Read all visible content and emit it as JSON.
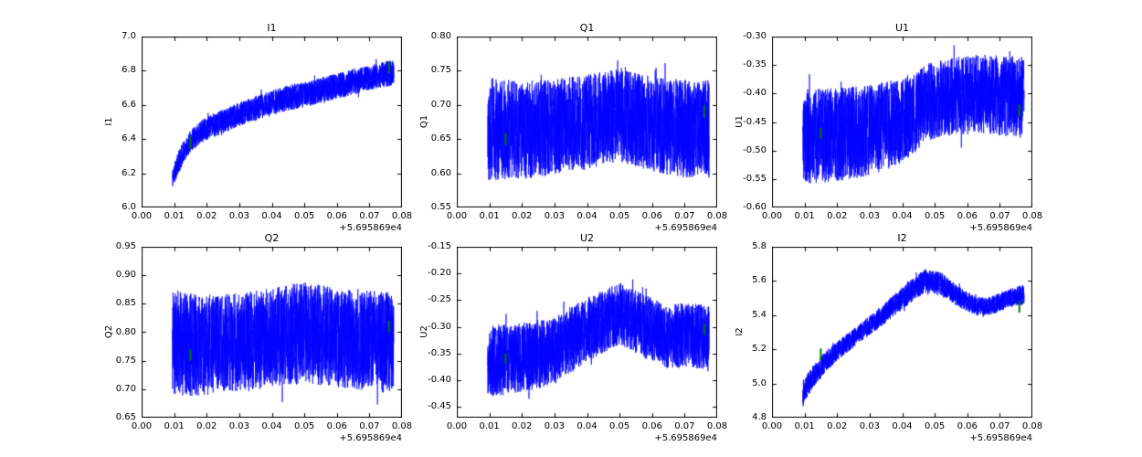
{
  "figure": {
    "bg": "#ffffff",
    "line_color": "#0000ff",
    "marker_color": "#007700",
    "axis_color": "#000000",
    "samples": 2600
  },
  "chart_data": [
    {
      "type": "line",
      "title": "I1",
      "ylabel": "I1",
      "x_offset": "+5.695869e4",
      "legend": "none",
      "grid": false,
      "xlim": [
        0.0,
        0.08
      ],
      "ylim": [
        6.0,
        7.0
      ],
      "xtick_values": [
        0.0,
        0.01,
        0.02,
        0.03,
        0.04,
        0.05,
        0.06,
        0.07,
        0.08
      ],
      "xtick_labels": [
        "0.00",
        "0.01",
        "0.02",
        "0.03",
        "0.04",
        "0.05",
        "0.06",
        "0.07",
        "0.08"
      ],
      "ytick_values": [
        6.0,
        6.2,
        6.4,
        6.6,
        6.8,
        7.0
      ],
      "ytick_labels": [
        "6.0",
        "6.2",
        "6.4",
        "6.6",
        "6.8",
        "7.0"
      ],
      "x_range": [
        0.0095,
        0.0775
      ],
      "trend": [
        [
          0.0095,
          6.17,
          0.06
        ],
        [
          0.011,
          6.25,
          0.065
        ],
        [
          0.013,
          6.33,
          0.065
        ],
        [
          0.015,
          6.39,
          0.065
        ],
        [
          0.018,
          6.44,
          0.065
        ],
        [
          0.022,
          6.48,
          0.07
        ],
        [
          0.027,
          6.52,
          0.07
        ],
        [
          0.032,
          6.56,
          0.07
        ],
        [
          0.038,
          6.6,
          0.075
        ],
        [
          0.045,
          6.64,
          0.075
        ],
        [
          0.052,
          6.67,
          0.075
        ],
        [
          0.06,
          6.71,
          0.075
        ],
        [
          0.068,
          6.75,
          0.075
        ],
        [
          0.0775,
          6.79,
          0.075
        ]
      ],
      "markers": [
        {
          "x": 0.015,
          "y": 6.38,
          "h": 0.07
        },
        {
          "x": 0.076,
          "y": 6.82,
          "h": 0.07
        }
      ],
      "seed": 11
    },
    {
      "type": "line",
      "title": "Q1",
      "ylabel": "Q1",
      "x_offset": "+5.695869e4",
      "legend": "none",
      "grid": false,
      "xlim": [
        0.0,
        0.08
      ],
      "ylim": [
        0.55,
        0.8
      ],
      "xtick_values": [
        0.0,
        0.01,
        0.02,
        0.03,
        0.04,
        0.05,
        0.06,
        0.07,
        0.08
      ],
      "xtick_labels": [
        "0.00",
        "0.01",
        "0.02",
        "0.03",
        "0.04",
        "0.05",
        "0.06",
        "0.07",
        "0.08"
      ],
      "ytick_values": [
        0.55,
        0.6,
        0.65,
        0.7,
        0.75,
        0.8
      ],
      "ytick_labels": [
        "0.55",
        "0.60",
        "0.65",
        "0.70",
        "0.75",
        "0.80"
      ],
      "x_range": [
        0.0095,
        0.0775
      ],
      "trend": [
        [
          0.0095,
          0.665,
          0.075
        ],
        [
          0.02,
          0.663,
          0.072
        ],
        [
          0.03,
          0.668,
          0.07
        ],
        [
          0.04,
          0.675,
          0.07
        ],
        [
          0.05,
          0.685,
          0.068
        ],
        [
          0.06,
          0.672,
          0.07
        ],
        [
          0.07,
          0.665,
          0.072
        ],
        [
          0.0775,
          0.665,
          0.072
        ]
      ],
      "markers": [
        {
          "x": 0.015,
          "y": 0.65,
          "h": 0.018
        },
        {
          "x": 0.076,
          "y": 0.69,
          "h": 0.018
        }
      ],
      "seed": 22
    },
    {
      "type": "line",
      "title": "U1",
      "ylabel": "U1",
      "x_offset": "+5.695869e4",
      "legend": "none",
      "grid": false,
      "xlim": [
        0.0,
        0.08
      ],
      "ylim": [
        -0.6,
        -0.3
      ],
      "xtick_values": [
        0.0,
        0.01,
        0.02,
        0.03,
        0.04,
        0.05,
        0.06,
        0.07,
        0.08
      ],
      "xtick_labels": [
        "0.00",
        "0.01",
        "0.02",
        "0.03",
        "0.04",
        "0.05",
        "0.06",
        "0.07",
        "0.08"
      ],
      "ytick_values": [
        -0.6,
        -0.55,
        -0.5,
        -0.45,
        -0.4,
        -0.35,
        -0.3
      ],
      "ytick_labels": [
        "-0.60",
        "-0.55",
        "-0.50",
        "-0.45",
        "-0.40",
        "-0.35",
        "-0.30"
      ],
      "x_range": [
        0.0095,
        0.0775
      ],
      "trend": [
        [
          0.0095,
          -0.478,
          0.085
        ],
        [
          0.02,
          -0.472,
          0.082
        ],
        [
          0.03,
          -0.465,
          0.08
        ],
        [
          0.04,
          -0.448,
          0.075
        ],
        [
          0.048,
          -0.415,
          0.068
        ],
        [
          0.055,
          -0.405,
          0.068
        ],
        [
          0.065,
          -0.4,
          0.07
        ],
        [
          0.0775,
          -0.408,
          0.072
        ]
      ],
      "markers": [
        {
          "x": 0.015,
          "y": -0.47,
          "h": 0.02
        },
        {
          "x": 0.076,
          "y": -0.43,
          "h": 0.02
        }
      ],
      "seed": 33
    },
    {
      "type": "line",
      "title": "Q2",
      "ylabel": "Q2",
      "x_offset": "+5.695869e4",
      "legend": "none",
      "grid": false,
      "xlim": [
        0.0,
        0.08
      ],
      "ylim": [
        0.65,
        0.95
      ],
      "xtick_values": [
        0.0,
        0.01,
        0.02,
        0.03,
        0.04,
        0.05,
        0.06,
        0.07,
        0.08
      ],
      "xtick_labels": [
        "0.00",
        "0.01",
        "0.02",
        "0.03",
        "0.04",
        "0.05",
        "0.06",
        "0.07",
        "0.08"
      ],
      "ytick_values": [
        0.65,
        0.7,
        0.75,
        0.8,
        0.85,
        0.9,
        0.95
      ],
      "ytick_labels": [
        "0.65",
        "0.70",
        "0.75",
        "0.80",
        "0.85",
        "0.90",
        "0.95"
      ],
      "x_range": [
        0.0095,
        0.0775
      ],
      "trend": [
        [
          0.0095,
          0.78,
          0.095
        ],
        [
          0.02,
          0.778,
          0.088
        ],
        [
          0.03,
          0.782,
          0.086
        ],
        [
          0.04,
          0.79,
          0.088
        ],
        [
          0.05,
          0.8,
          0.09
        ],
        [
          0.06,
          0.79,
          0.086
        ],
        [
          0.07,
          0.785,
          0.088
        ],
        [
          0.0775,
          0.78,
          0.09
        ]
      ],
      "markers": [
        {
          "x": 0.015,
          "y": 0.76,
          "h": 0.02
        },
        {
          "x": 0.076,
          "y": 0.81,
          "h": 0.02
        }
      ],
      "seed": 44
    },
    {
      "type": "line",
      "title": "U2",
      "ylabel": "U2",
      "x_offset": "+5.695869e4",
      "legend": "none",
      "grid": false,
      "xlim": [
        0.0,
        0.08
      ],
      "ylim": [
        -0.47,
        -0.15
      ],
      "xtick_values": [
        0.0,
        0.01,
        0.02,
        0.03,
        0.04,
        0.05,
        0.06,
        0.07,
        0.08
      ],
      "xtick_labels": [
        "0.00",
        "0.01",
        "0.02",
        "0.03",
        "0.04",
        "0.05",
        "0.06",
        "0.07",
        "0.08"
      ],
      "ytick_values": [
        -0.45,
        -0.4,
        -0.35,
        -0.3,
        -0.25,
        -0.2,
        -0.15
      ],
      "ytick_labels": [
        "-0.45",
        "-0.40",
        "-0.35",
        "-0.30",
        "-0.25",
        "-0.20",
        "-0.15"
      ],
      "x_range": [
        0.0095,
        0.0775
      ],
      "trend": [
        [
          0.0095,
          -0.365,
          0.068
        ],
        [
          0.02,
          -0.358,
          0.065
        ],
        [
          0.03,
          -0.345,
          0.063
        ],
        [
          0.04,
          -0.305,
          0.06
        ],
        [
          0.05,
          -0.275,
          0.058
        ],
        [
          0.058,
          -0.3,
          0.06
        ],
        [
          0.065,
          -0.318,
          0.06
        ],
        [
          0.072,
          -0.315,
          0.06
        ],
        [
          0.0775,
          -0.32,
          0.062
        ]
      ],
      "markers": [
        {
          "x": 0.015,
          "y": -0.36,
          "h": 0.02
        },
        {
          "x": 0.076,
          "y": -0.305,
          "h": 0.02
        }
      ],
      "seed": 55
    },
    {
      "type": "line",
      "title": "I2",
      "ylabel": "I2",
      "x_offset": "+5.695869e4",
      "legend": "none",
      "grid": false,
      "xlim": [
        0.0,
        0.08
      ],
      "ylim": [
        4.8,
        5.8
      ],
      "xtick_values": [
        0.0,
        0.01,
        0.02,
        0.03,
        0.04,
        0.05,
        0.06,
        0.07,
        0.08
      ],
      "xtick_labels": [
        "0.00",
        "0.01",
        "0.02",
        "0.03",
        "0.04",
        "0.05",
        "0.06",
        "0.07",
        "0.08"
      ],
      "ytick_values": [
        4.8,
        5.0,
        5.2,
        5.4,
        5.6,
        5.8
      ],
      "ytick_labels": [
        "4.8",
        "5.0",
        "5.2",
        "5.4",
        "5.6",
        "5.8"
      ],
      "x_range": [
        0.0095,
        0.0775
      ],
      "trend": [
        [
          0.0095,
          4.95,
          0.07
        ],
        [
          0.013,
          5.05,
          0.065
        ],
        [
          0.017,
          5.14,
          0.06
        ],
        [
          0.022,
          5.22,
          0.055
        ],
        [
          0.028,
          5.31,
          0.055
        ],
        [
          0.034,
          5.4,
          0.06
        ],
        [
          0.04,
          5.5,
          0.065
        ],
        [
          0.047,
          5.6,
          0.07
        ],
        [
          0.052,
          5.58,
          0.07
        ],
        [
          0.058,
          5.5,
          0.06
        ],
        [
          0.063,
          5.45,
          0.055
        ],
        [
          0.068,
          5.46,
          0.055
        ],
        [
          0.073,
          5.5,
          0.055
        ],
        [
          0.0775,
          5.52,
          0.06
        ]
      ],
      "markers": [
        {
          "x": 0.015,
          "y": 5.17,
          "h": 0.07
        },
        {
          "x": 0.076,
          "y": 5.45,
          "h": 0.07
        }
      ],
      "seed": 66
    }
  ]
}
